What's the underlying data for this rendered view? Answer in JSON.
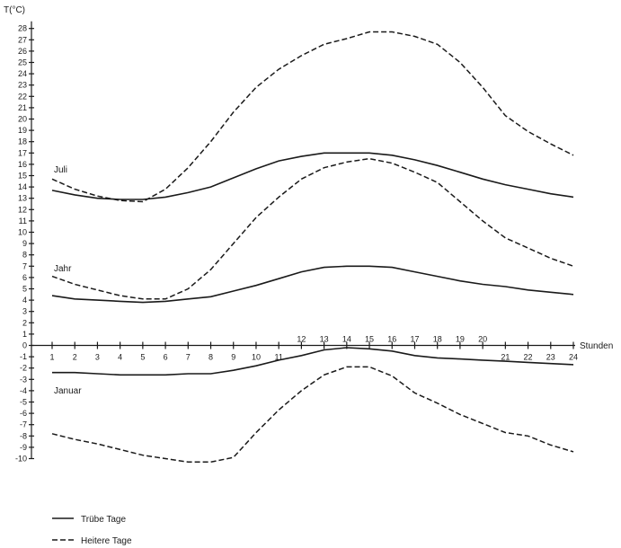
{
  "chart_data": {
    "type": "line",
    "ylabel": "T(°C)",
    "xlabel": "Stunden",
    "x": [
      1,
      2,
      3,
      4,
      5,
      6,
      7,
      8,
      9,
      10,
      11,
      12,
      13,
      14,
      15,
      16,
      17,
      18,
      19,
      20,
      21,
      22,
      23,
      24
    ],
    "xlim": [
      1,
      24
    ],
    "ylim": [
      -10,
      28
    ],
    "y_ticks": [
      -10,
      -9,
      -8,
      -7,
      -6,
      -5,
      -4,
      -3,
      -2,
      -1,
      0,
      1,
      2,
      3,
      4,
      5,
      6,
      7,
      8,
      9,
      10,
      11,
      12,
      13,
      14,
      15,
      16,
      17,
      18,
      19,
      20,
      21,
      22,
      23,
      24,
      25,
      26,
      27,
      28
    ],
    "groups": [
      {
        "label": "Juli",
        "series": [
          {
            "style": "solid",
            "values": [
              13.7,
              13.3,
              13.0,
              12.9,
              12.9,
              13.1,
              13.5,
              14.0,
              14.8,
              15.6,
              16.3,
              16.7,
              17.0,
              17.0,
              17.0,
              16.8,
              16.4,
              15.9,
              15.3,
              14.7,
              14.2,
              13.8,
              13.4,
              13.1
            ]
          },
          {
            "style": "dashed",
            "values": [
              14.7,
              13.8,
              13.2,
              12.8,
              12.7,
              13.8,
              15.7,
              18.0,
              20.6,
              22.8,
              24.4,
              25.6,
              26.6,
              27.1,
              27.7,
              27.7,
              27.3,
              26.6,
              25.0,
              22.8,
              20.3,
              18.9,
              17.8,
              16.8
            ]
          }
        ]
      },
      {
        "label": "Jahr",
        "series": [
          {
            "style": "solid",
            "values": [
              4.4,
              4.1,
              4.0,
              3.9,
              3.8,
              3.9,
              4.1,
              4.3,
              4.8,
              5.3,
              5.9,
              6.5,
              6.9,
              7.0,
              7.0,
              6.9,
              6.5,
              6.1,
              5.7,
              5.4,
              5.2,
              4.9,
              4.7,
              4.5
            ]
          },
          {
            "style": "dashed",
            "values": [
              6.1,
              5.4,
              4.9,
              4.4,
              4.1,
              4.1,
              5.0,
              6.7,
              9.0,
              11.3,
              13.1,
              14.7,
              15.7,
              16.2,
              16.5,
              16.1,
              15.3,
              14.4,
              12.7,
              11.0,
              9.5,
              8.6,
              7.7,
              7.0
            ]
          }
        ]
      },
      {
        "label": "Januar",
        "series": [
          {
            "style": "solid",
            "values": [
              -2.4,
              -2.4,
              -2.5,
              -2.6,
              -2.6,
              -2.6,
              -2.5,
              -2.5,
              -2.2,
              -1.8,
              -1.3,
              -0.9,
              -0.4,
              -0.2,
              -0.3,
              -0.5,
              -0.9,
              -1.1,
              -1.2,
              -1.3,
              -1.4,
              -1.5,
              -1.6,
              -1.7
            ]
          },
          {
            "style": "dashed",
            "values": [
              -7.8,
              -8.3,
              -8.7,
              -9.2,
              -9.7,
              -10.0,
              -10.3,
              -10.3,
              -9.9,
              -7.7,
              -5.7,
              -4.0,
              -2.6,
              -1.9,
              -1.9,
              -2.7,
              -4.2,
              -5.1,
              -6.1,
              -6.9,
              -7.7,
              -8.0,
              -8.8,
              -9.4
            ]
          }
        ]
      }
    ],
    "legend": {
      "position": "bottom-left",
      "items": [
        {
          "style": "solid",
          "label": "Trübe Tage"
        },
        {
          "style": "dashed",
          "label": "Heitere Tage"
        }
      ]
    },
    "grid": false
  }
}
